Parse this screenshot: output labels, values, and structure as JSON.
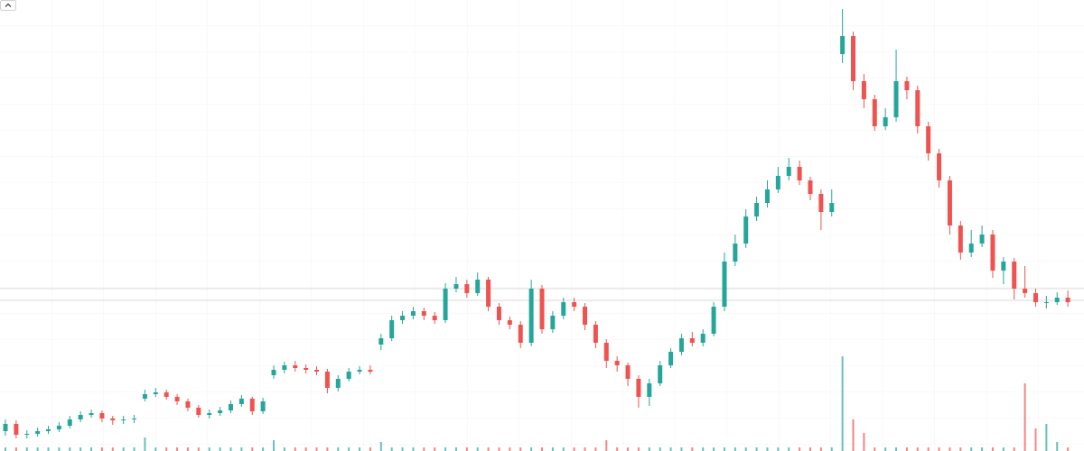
{
  "chart_data": {
    "type": "candlestick",
    "categories": [
      null,
      null,
      null,
      null,
      null,
      null,
      null,
      null,
      null,
      null,
      null,
      null,
      null,
      null,
      null,
      null,
      null,
      null,
      null,
      null,
      null,
      null,
      null,
      null,
      null,
      null,
      null,
      null,
      null,
      null,
      null,
      null,
      null,
      null,
      null,
      null,
      null,
      null,
      null,
      null,
      null,
      null,
      null,
      null,
      null,
      null,
      null,
      null,
      null,
      null,
      null,
      null,
      null,
      null,
      null,
      null,
      null,
      null,
      null,
      null,
      null,
      null,
      null,
      null,
      null,
      null,
      null,
      null,
      null,
      null,
      null,
      null,
      null,
      null,
      null,
      null,
      null,
      null,
      null,
      null,
      null,
      null,
      null,
      null,
      null,
      null,
      null,
      null,
      null,
      null,
      null,
      null,
      null,
      null,
      null,
      null,
      null,
      null,
      null,
      null
    ],
    "open": [
      22,
      30,
      18,
      19,
      22,
      24,
      28,
      35,
      40,
      42,
      36,
      34,
      35,
      58,
      63,
      65,
      60,
      55,
      48,
      40,
      42,
      45,
      52,
      58,
      44,
      84,
      90,
      95,
      92,
      90,
      88,
      70,
      80,
      88,
      90,
      118,
      125,
      145,
      150,
      155,
      150,
      145,
      180,
      185,
      175,
      190,
      160,
      145,
      140,
      120,
      180,
      135,
      150,
      165,
      160,
      140,
      120,
      100,
      95,
      80,
      60,
      75,
      95,
      110,
      125,
      120,
      130,
      160,
      210,
      230,
      260,
      275,
      290,
      305,
      315,
      300,
      285,
      265,
      440,
      460,
      410,
      390,
      360,
      370,
      410,
      400,
      360,
      330,
      300,
      250,
      220,
      230,
      240,
      200,
      210,
      180,
      175,
      165,
      165,
      170
    ],
    "high": [
      35,
      34,
      23,
      26,
      28,
      32,
      39,
      44,
      46,
      45,
      39,
      39,
      40,
      68,
      70,
      68,
      63,
      58,
      51,
      46,
      49,
      56,
      62,
      60,
      59,
      95,
      99,
      100,
      96,
      94,
      91,
      84,
      92,
      94,
      95,
      130,
      150,
      155,
      160,
      159,
      154,
      186,
      193,
      190,
      198,
      193,
      164,
      149,
      144,
      190,
      184,
      155,
      170,
      170,
      164,
      144,
      124,
      105,
      98,
      84,
      80,
      100,
      114,
      130,
      132,
      135,
      165,
      220,
      240,
      268,
      282,
      300,
      315,
      325,
      322,
      304,
      290,
      290,
      490,
      465,
      418,
      395,
      380,
      445,
      415,
      405,
      365,
      335,
      305,
      255,
      245,
      250,
      245,
      215,
      214,
      205,
      180,
      172,
      176,
      178
    ],
    "low": [
      17,
      14,
      14,
      16,
      19,
      21,
      25,
      32,
      37,
      32,
      29,
      30,
      31,
      55,
      60,
      57,
      51,
      44,
      37,
      36,
      39,
      42,
      49,
      40,
      41,
      80,
      86,
      88,
      86,
      84,
      64,
      66,
      77,
      85,
      85,
      112,
      122,
      141,
      146,
      145,
      141,
      142,
      176,
      170,
      172,
      155,
      140,
      135,
      114,
      116,
      130,
      131,
      146,
      155,
      134,
      114,
      92,
      88,
      72,
      48,
      50,
      72,
      92,
      106,
      116,
      116,
      127,
      155,
      205,
      225,
      255,
      270,
      286,
      300,
      295,
      278,
      245,
      260,
      430,
      400,
      380,
      355,
      356,
      365,
      390,
      352,
      322,
      292,
      240,
      212,
      215,
      226,
      192,
      185,
      168,
      170,
      160,
      158,
      162,
      160
    ],
    "close": [
      30,
      18,
      19,
      22,
      24,
      28,
      35,
      40,
      42,
      36,
      34,
      35,
      36,
      63,
      65,
      60,
      55,
      48,
      40,
      42,
      45,
      52,
      58,
      44,
      55,
      90,
      95,
      92,
      90,
      88,
      70,
      80,
      88,
      90,
      88,
      125,
      145,
      150,
      155,
      150,
      145,
      180,
      185,
      175,
      190,
      160,
      145,
      140,
      120,
      180,
      135,
      150,
      165,
      160,
      140,
      120,
      100,
      95,
      80,
      60,
      75,
      95,
      110,
      125,
      120,
      130,
      160,
      210,
      230,
      260,
      275,
      290,
      305,
      315,
      300,
      285,
      265,
      275,
      460,
      410,
      390,
      360,
      370,
      410,
      400,
      360,
      330,
      300,
      250,
      220,
      230,
      240,
      200,
      210,
      180,
      175,
      165,
      165,
      170,
      165
    ],
    "volume": [
      4,
      4,
      4,
      4,
      4,
      4,
      4,
      4,
      4,
      4,
      4,
      4,
      4,
      15,
      4,
      4,
      4,
      4,
      4,
      4,
      4,
      4,
      4,
      4,
      4,
      12,
      4,
      4,
      4,
      4,
      4,
      4,
      4,
      4,
      4,
      10,
      4,
      4,
      4,
      4,
      4,
      4,
      4,
      4,
      4,
      4,
      4,
      4,
      4,
      4,
      4,
      4,
      4,
      4,
      4,
      4,
      12,
      4,
      4,
      4,
      4,
      4,
      4,
      4,
      4,
      4,
      4,
      4,
      4,
      4,
      4,
      4,
      4,
      4,
      4,
      4,
      4,
      4,
      105,
      35,
      20,
      4,
      4,
      4,
      4,
      4,
      4,
      4,
      4,
      4,
      4,
      4,
      4,
      4,
      4,
      75,
      25,
      30,
      10,
      4
    ],
    "up_color": "#26a69a",
    "down_color": "#ef5350",
    "price_lines": [
      180,
      167
    ],
    "ylim": [
      0,
      500
    ],
    "volume_ylim": [
      0,
      500
    ]
  }
}
